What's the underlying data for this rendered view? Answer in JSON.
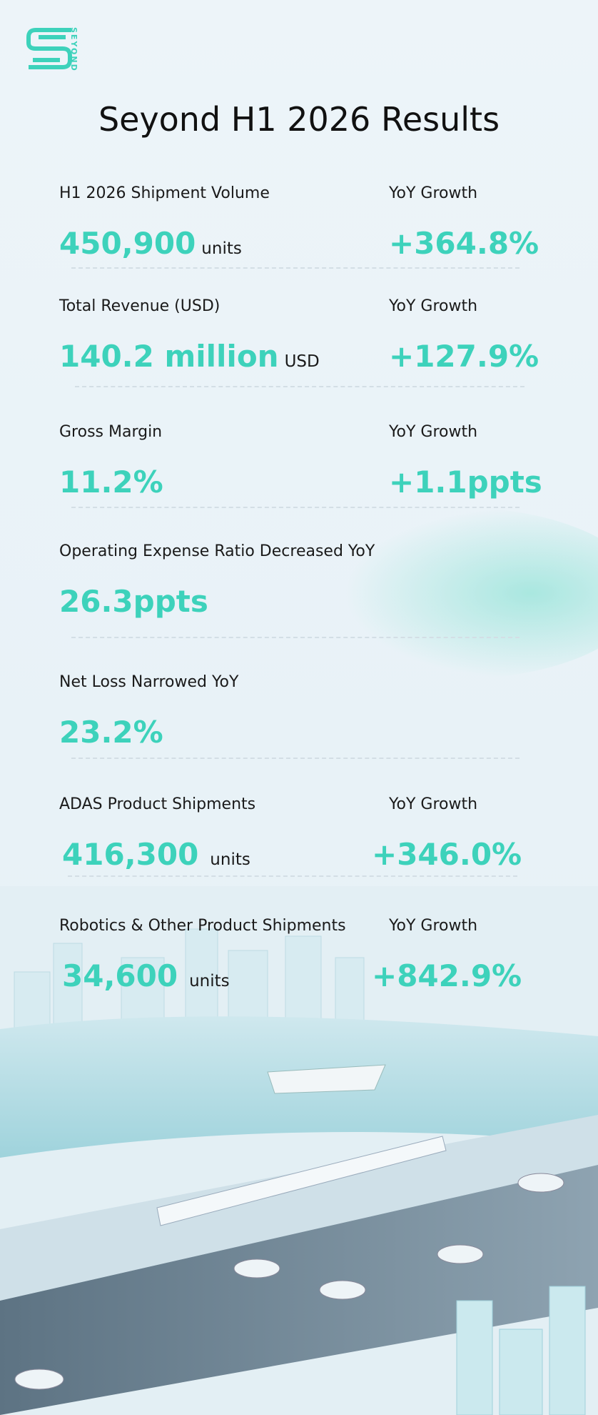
{
  "logo": "SEYOND",
  "title": "Seyond H1 2026 Results",
  "metrics": [
    {
      "label": "H1 2026 Shipment Volume",
      "value": "450,900",
      "unit": "units",
      "growth_label": "YoY Growth",
      "growth": "+364.8%"
    },
    {
      "label": "Total Revenue (USD)",
      "value": "140.2 million",
      "unit": "USD",
      "growth_label": "YoY Growth",
      "growth": "+127.9%"
    },
    {
      "label": "Gross Margin",
      "value": "11.2%",
      "growth_label": "YoY Growth",
      "growth": "+1.1ppts"
    },
    {
      "label": "Operating Expense Ratio Decreased YoY",
      "value": "26.3ppts"
    },
    {
      "label": "Net Loss Narrowed YoY",
      "value": "23.2%"
    },
    {
      "label": "ADAS Product Shipments",
      "value": "416,300",
      "unit": "units",
      "growth_label": "YoY Growth",
      "growth": "+346.0%"
    },
    {
      "label": "Robotics & Other Product Shipments",
      "value": "34,600",
      "unit": "units",
      "growth_label": "YoY Growth",
      "growth": "+842.9%"
    }
  ]
}
